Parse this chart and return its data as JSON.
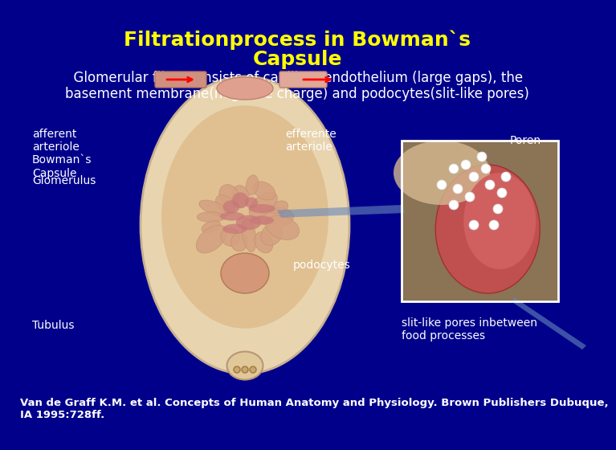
{
  "bg_color": "#00008B",
  "title_line1": "Filtrationprocess in Bowman`s",
  "title_line2": "Capsule",
  "title_color": "#FFFF00",
  "title_fontsize": 18,
  "subtitle": "  Glomerular filter consists of capillary endothelium (large gaps), the\nbasement membrane(negative charge) and podocytes(slit-like pores)",
  "subtitle_color": "white",
  "subtitle_fontsize": 12,
  "label_color": "white",
  "label_fontsize": 10,
  "citation": "Van de Graff K.M. et al. Concepts of Human Anatomy and Physiology. Brown Publishers Dubuque,\nIA 1995:728ff.",
  "citation_color": "white",
  "citation_fontsize": 9.5
}
